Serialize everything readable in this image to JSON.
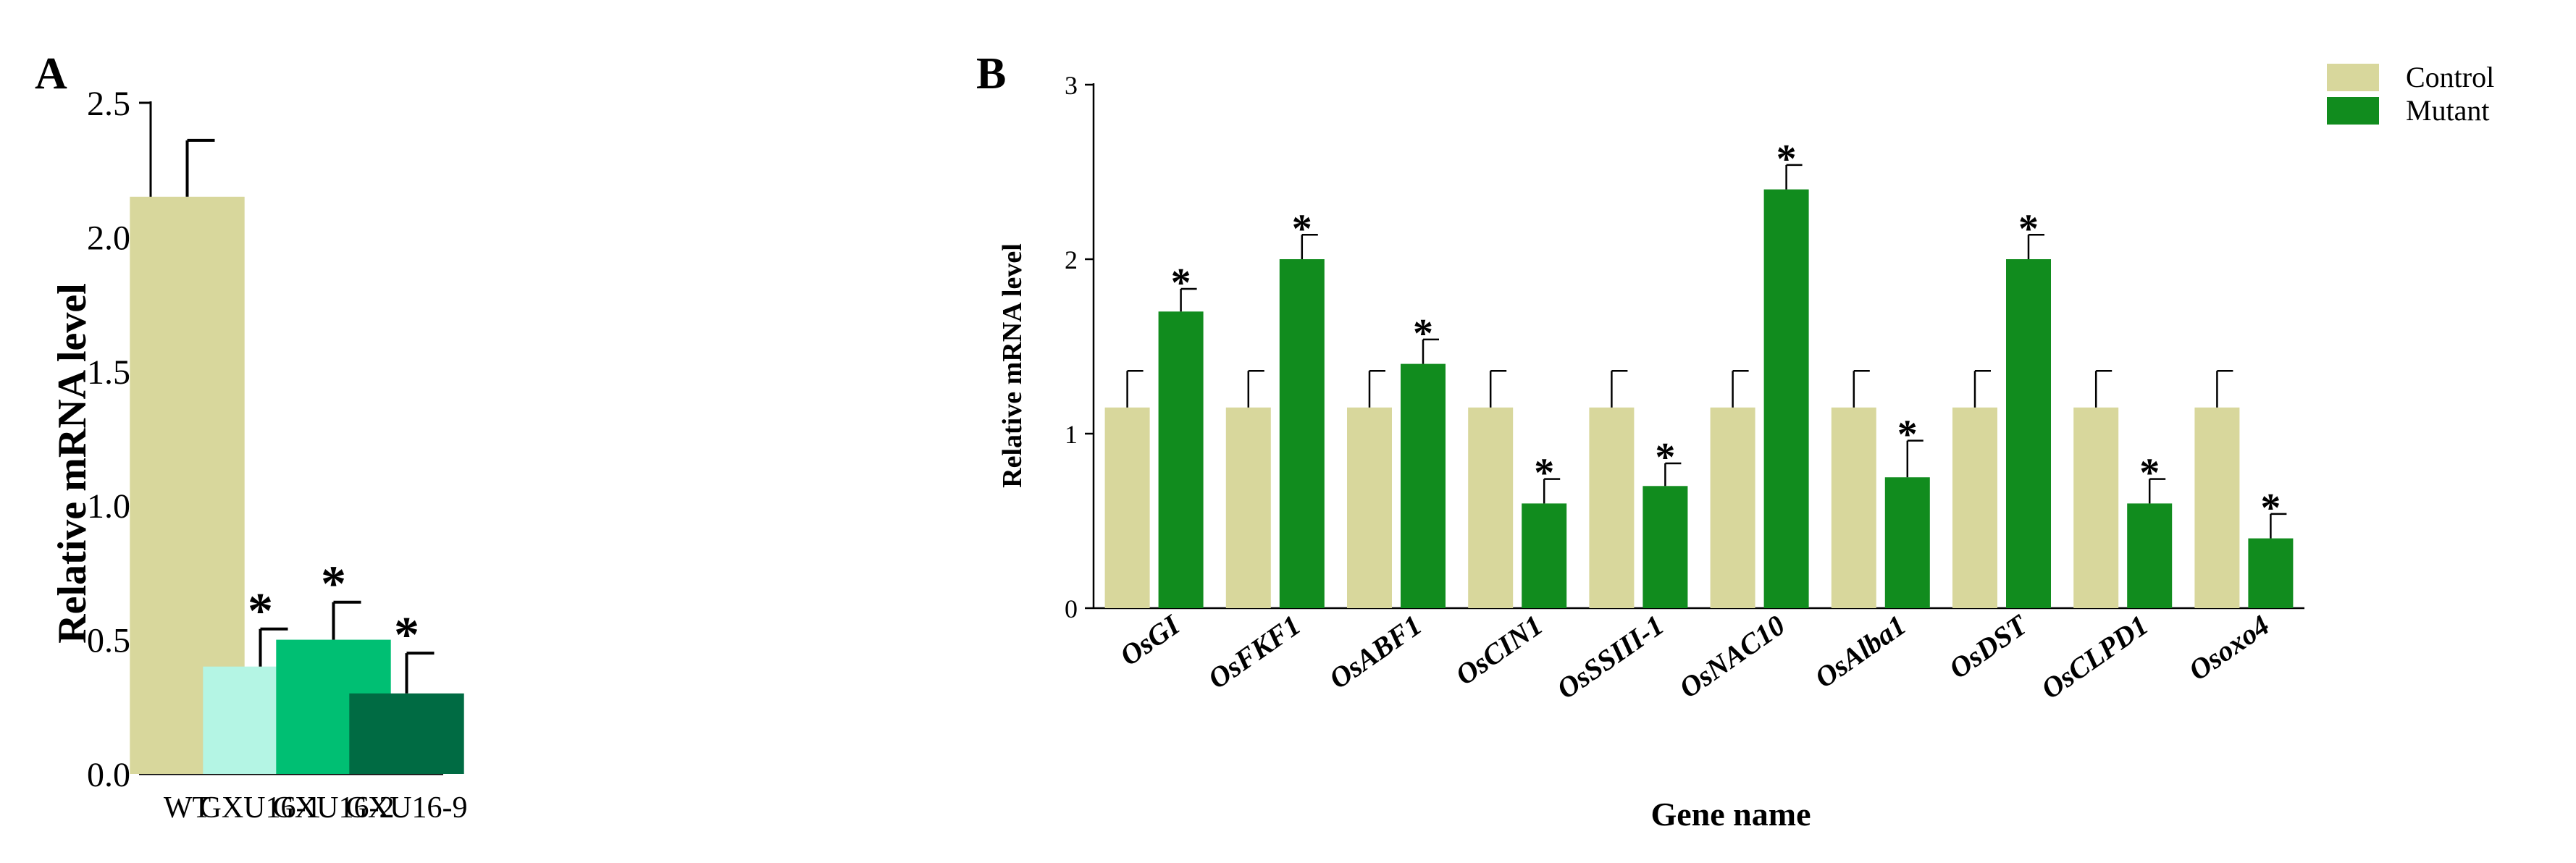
{
  "chart_data": [
    {
      "panel_label": "A",
      "type": "bar",
      "title": "",
      "xlabel": "",
      "ylabel": "Relative mRNA level",
      "ylim": [
        0,
        2.5
      ],
      "yticks": [
        "0.0",
        "0.5",
        "1.0",
        "1.5",
        "2.0",
        "2.5"
      ],
      "categories": [
        "WT",
        "GXU16-1",
        "GXU16-2",
        "GXU16-9"
      ],
      "values": [
        2.15,
        0.4,
        0.5,
        0.3
      ],
      "errors": [
        0.21,
        0.14,
        0.14,
        0.15
      ],
      "significance": [
        "",
        "*",
        "*",
        "*"
      ],
      "colors": [
        "#d8d79c",
        "#b4f5e4",
        "#00bf73",
        "#006b43"
      ],
      "grid": false
    },
    {
      "panel_label": "B",
      "type": "bar",
      "title": "",
      "xlabel": "Gene name",
      "ylabel": "Relative mRNA level",
      "ylim": [
        0,
        3
      ],
      "yticks": [
        "0",
        "1",
        "2",
        "3"
      ],
      "categories": [
        "OsGI",
        "OsFKF1",
        "OsABF1",
        "OsCIN1",
        "OsSSIII-1",
        "OsNAC10",
        "OsAlba1",
        "OsDST",
        "OsCLPD1",
        "Osoxo4"
      ],
      "series": [
        {
          "name": "Control",
          "color": "#d8d79c",
          "values": [
            1.15,
            1.15,
            1.15,
            1.15,
            1.15,
            1.15,
            1.15,
            1.15,
            1.15,
            1.15
          ],
          "errors": [
            0.21,
            0.21,
            0.21,
            0.21,
            0.21,
            0.21,
            0.21,
            0.21,
            0.21,
            0.21
          ],
          "significance": [
            "",
            "",
            "",
            "",
            "",
            "",
            "",
            "",
            "",
            ""
          ]
        },
        {
          "name": "Mutant",
          "color": "#118c1e",
          "values": [
            1.7,
            2.0,
            1.4,
            0.6,
            0.7,
            2.4,
            0.75,
            2.0,
            0.6,
            0.4
          ],
          "errors": [
            0.13,
            0.14,
            0.14,
            0.14,
            0.13,
            0.14,
            0.21,
            0.14,
            0.14,
            0.14
          ],
          "significance": [
            "*",
            "*",
            "*",
            "*",
            "*",
            "*",
            "*",
            "*",
            "*",
            "*"
          ]
        }
      ],
      "legend_position": "top-right",
      "grid": false
    }
  ]
}
